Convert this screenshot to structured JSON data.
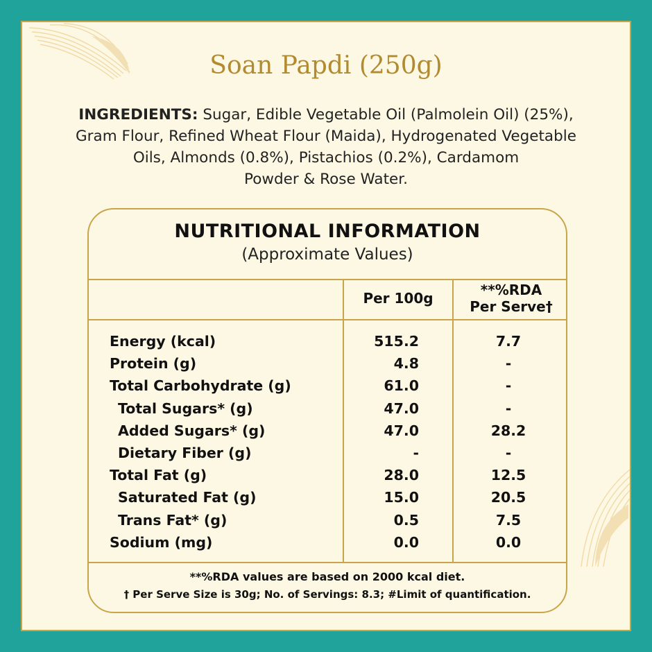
{
  "title": "Soan Papdi (250g)",
  "ingredients": {
    "label": "INGREDIENTS:",
    "lines": [
      "Sugar, Edible Vegetable Oil (Palmolein Oil) (25%),",
      "Gram Flour, Refined Wheat Flour (Maida), Hydrogenated Vegetable",
      "Oils, Almonds (0.8%), Pistachios (0.2%), Cardamom",
      "Powder & Rose Water."
    ]
  },
  "nutrition": {
    "title": "NUTRITIONAL INFORMATION",
    "subtitle": "(Approximate Values)",
    "col_per100": "Per 100g",
    "col_rda_line1": "**%RDA",
    "col_rda_line2": "Per Serve†",
    "rows": [
      {
        "label": "Energy (kcal)",
        "per100": "515.2",
        "rda": "7.7"
      },
      {
        "label": "Protein (g)",
        "per100": "4.8",
        "rda": "-"
      },
      {
        "label": "Total Carbohydrate (g)",
        "per100": "61.0",
        "rda": "-"
      },
      {
        "label": "Total Sugars* (g)",
        "per100": "47.0",
        "rda": "-"
      },
      {
        "label": "Added Sugars* (g)",
        "per100": "47.0",
        "rda": "28.2"
      },
      {
        "label": "Dietary Fiber (g)",
        "per100": "-",
        "rda": "-"
      },
      {
        "label": "Total Fat (g)",
        "per100": "28.0",
        "rda": "12.5"
      },
      {
        "label": "Saturated Fat (g)",
        "per100": "15.0",
        "rda": "20.5"
      },
      {
        "label": "Trans Fat* (g)",
        "per100": "0.5",
        "rda": "7.5"
      },
      {
        "label": "Sodium (mg)",
        "per100": "0.0",
        "rda": "0.0"
      }
    ],
    "footnote1": "**%RDA values are based on 2000 kcal diet.",
    "footnote2": "† Per Serve Size is 30g; No. of Servings: 8.3; #Limit of quantification."
  },
  "colors": {
    "background": "#1fa39b",
    "card": "#fdf8e3",
    "gold": "#c9a54a",
    "title": "#b28a2f"
  },
  "icons": {
    "top_left": "feather-leaf-icon",
    "bottom_right": "feather-leaf-icon"
  }
}
